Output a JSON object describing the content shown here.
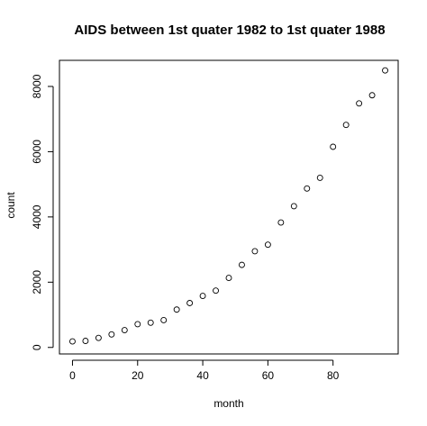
{
  "chart_data": {
    "type": "scatter",
    "title": "AIDS between 1st quater 1982 to 1st quater 1988",
    "xlabel": "month",
    "ylabel": "count",
    "xlim": [
      -4,
      100
    ],
    "ylim": [
      -200,
      8800
    ],
    "x_ticks": [
      0,
      20,
      40,
      60,
      80
    ],
    "y_ticks": [
      0,
      2000,
      4000,
      6000,
      8000
    ],
    "grid": false,
    "legend": "none",
    "points": [
      {
        "x": 0,
        "y": 185
      },
      {
        "x": 4,
        "y": 200
      },
      {
        "x": 8,
        "y": 293
      },
      {
        "x": 12,
        "y": 400
      },
      {
        "x": 16,
        "y": 530
      },
      {
        "x": 20,
        "y": 713
      },
      {
        "x": 24,
        "y": 759
      },
      {
        "x": 28,
        "y": 837
      },
      {
        "x": 32,
        "y": 1160
      },
      {
        "x": 36,
        "y": 1360
      },
      {
        "x": 40,
        "y": 1580
      },
      {
        "x": 44,
        "y": 1740
      },
      {
        "x": 48,
        "y": 2130
      },
      {
        "x": 52,
        "y": 2530
      },
      {
        "x": 56,
        "y": 2950
      },
      {
        "x": 60,
        "y": 3150
      },
      {
        "x": 64,
        "y": 3830
      },
      {
        "x": 68,
        "y": 4330
      },
      {
        "x": 72,
        "y": 4870
      },
      {
        "x": 76,
        "y": 5200
      },
      {
        "x": 80,
        "y": 6150
      },
      {
        "x": 84,
        "y": 6820
      },
      {
        "x": 88,
        "y": 7480
      },
      {
        "x": 92,
        "y": 7730
      },
      {
        "x": 96,
        "y": 8490
      }
    ]
  }
}
